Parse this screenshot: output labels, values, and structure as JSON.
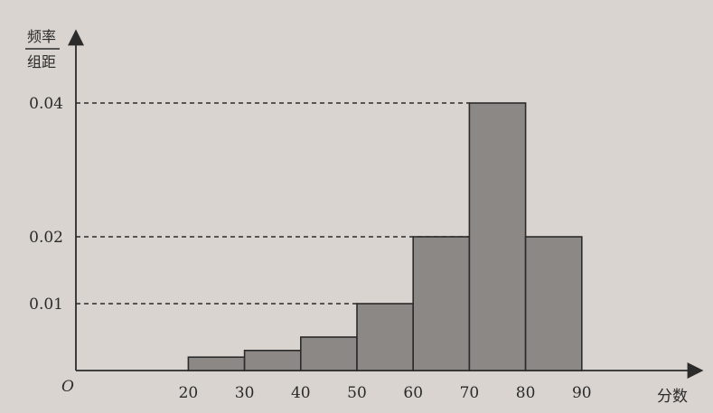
{
  "chart_data": {
    "type": "bar",
    "subtype": "histogram",
    "ylabel_numerator": "频率",
    "ylabel_denominator": "组距",
    "xlabel": "分数",
    "origin_label": "O",
    "bins": [
      {
        "from": 20,
        "to": 30,
        "value": 0.002
      },
      {
        "from": 30,
        "to": 40,
        "value": 0.003
      },
      {
        "from": 40,
        "to": 50,
        "value": 0.005
      },
      {
        "from": 50,
        "to": 60,
        "value": 0.01
      },
      {
        "from": 60,
        "to": 70,
        "value": 0.02
      },
      {
        "from": 70,
        "to": 80,
        "value": 0.04
      },
      {
        "from": 80,
        "to": 90,
        "value": 0.02
      }
    ],
    "x_ticks": [
      "20",
      "30",
      "40",
      "50",
      "60",
      "70",
      "80",
      "90"
    ],
    "y_ticks": [
      {
        "value": 0.01,
        "label": "0.01"
      },
      {
        "value": 0.02,
        "label": "0.02"
      },
      {
        "value": 0.04,
        "label": "0.04"
      }
    ],
    "xlim": [
      0,
      100
    ],
    "ylim": [
      0,
      0.045
    ],
    "grid": false,
    "dashed_guides": true
  }
}
